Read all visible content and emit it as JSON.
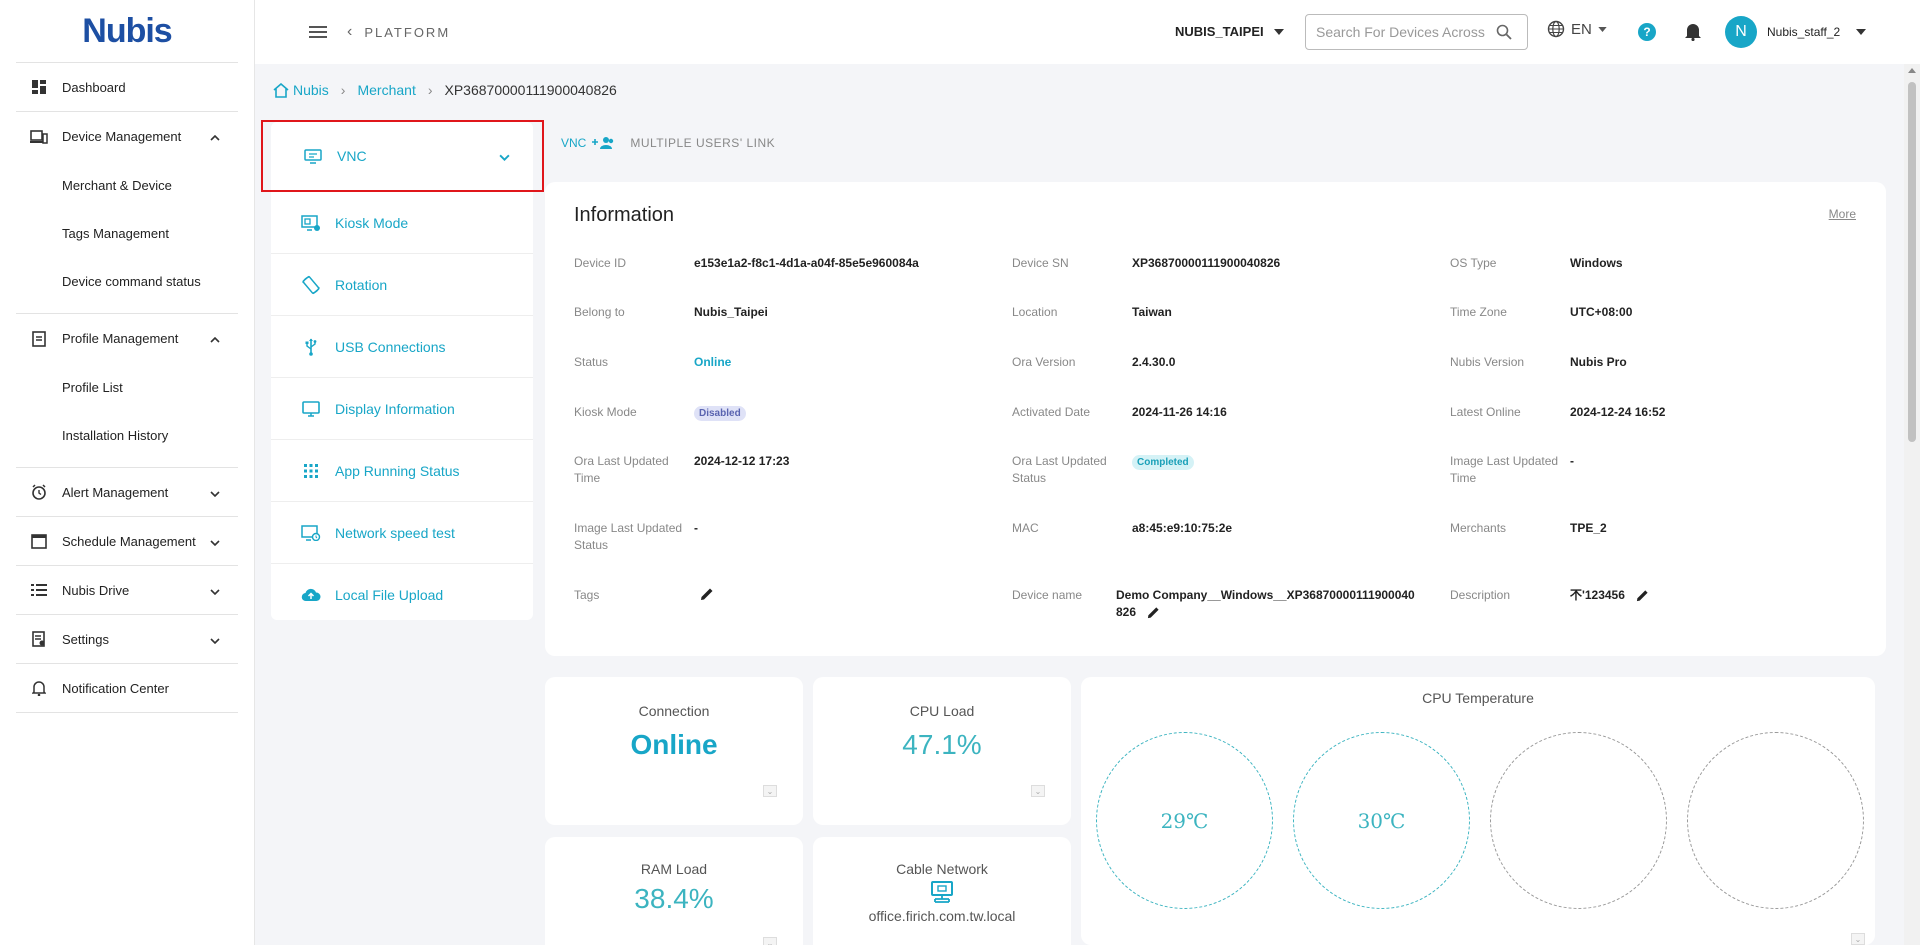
{
  "brand": {
    "logo_text": "Nubis"
  },
  "sidebar": {
    "items": [
      {
        "label": "Dashboard"
      },
      {
        "label": "Device Management",
        "children": [
          "Merchant & Device",
          "Tags Management",
          "Device command status"
        ]
      },
      {
        "label": "Profile Management",
        "children": [
          "Profile List",
          "Installation History"
        ]
      },
      {
        "label": "Alert Management"
      },
      {
        "label": "Schedule Management"
      },
      {
        "label": "Nubis Drive"
      },
      {
        "label": "Settings"
      },
      {
        "label": "Notification Center"
      }
    ]
  },
  "topbar": {
    "back_label": "PLATFORM",
    "org": "NUBIS_TAIPEI",
    "search_placeholder": "Search For Devices Across",
    "lang": "EN",
    "help": "?",
    "avatar_initial": "N",
    "user": "Nubis_staff_2"
  },
  "breadcrumb": {
    "home": "Nubis",
    "merchant": "Merchant",
    "current": "XP36870000111900040826"
  },
  "functions": [
    {
      "label": "VNC",
      "icon": "vnc-icon"
    },
    {
      "label": "Kiosk Mode",
      "icon": "kiosk-icon"
    },
    {
      "label": "Rotation",
      "icon": "rotation-icon"
    },
    {
      "label": "USB Connections",
      "icon": "usb-icon"
    },
    {
      "label": "Display Information",
      "icon": "display-icon"
    },
    {
      "label": "App Running Status",
      "icon": "apps-grid-icon"
    },
    {
      "label": "Network speed test",
      "icon": "network-test-icon"
    },
    {
      "label": "Local File Upload",
      "icon": "cloud-upload-icon"
    }
  ],
  "tabs": {
    "vnc": "VNC",
    "multi": "MULTIPLE USERS' LINK"
  },
  "info": {
    "title": "Information",
    "more": "More",
    "device_id_label": "Device ID",
    "device_id": "e153e1a2-f8c1-4d1a-a04f-85e5e960084a",
    "device_sn_label": "Device SN",
    "device_sn": "XP36870000111900040826",
    "os_type_label": "OS Type",
    "os_type": "Windows",
    "belong_label": "Belong to",
    "belong": "Nubis_Taipei",
    "location_label": "Location",
    "location": "Taiwan",
    "timezone_label": "Time Zone",
    "timezone": "UTC+08:00",
    "status_label": "Status",
    "status": "Online",
    "ora_version_label": "Ora Version",
    "ora_version": "2.4.30.0",
    "nubis_version_label": "Nubis Version",
    "nubis_version": "Nubis Pro",
    "kiosk_label": "Kiosk Mode",
    "kiosk": "Disabled",
    "activated_label": "Activated Date",
    "activated": "2024-11-26 14:16",
    "latest_online_label": "Latest Online",
    "latest_online": "2024-12-24 16:52",
    "ora_updated_time_label": "Ora Last Updated Time",
    "ora_updated_time": "2024-12-12 17:23",
    "ora_updated_status_label": "Ora Last Updated Status",
    "ora_updated_status": "Completed",
    "image_updated_time_label": "Image Last Updated Time",
    "image_updated_time": "-",
    "image_updated_status_label": "Image Last Updated Status",
    "image_updated_status": "-",
    "mac_label": "MAC",
    "mac": "a8:45:e9:10:75:2e",
    "merchants_label": "Merchants",
    "merchants": "TPE_2",
    "tags_label": "Tags",
    "device_name_label": "Device name",
    "device_name": "Demo Company__Windows__XP36870000111900040826",
    "description_label": "Description",
    "description": "𣎴'123456"
  },
  "stats": {
    "connection_label": "Connection",
    "connection": "Online",
    "cpu_load_label": "CPU Load",
    "cpu_load": "47.1%",
    "ram_load_label": "RAM Load",
    "ram_load": "38.4%",
    "cable_label": "Cable Network",
    "cable_host": "office.firich.com.tw.local",
    "cpu_temp_label": "CPU Temperature",
    "temps": [
      "29℃",
      "30℃",
      "",
      ""
    ]
  }
}
